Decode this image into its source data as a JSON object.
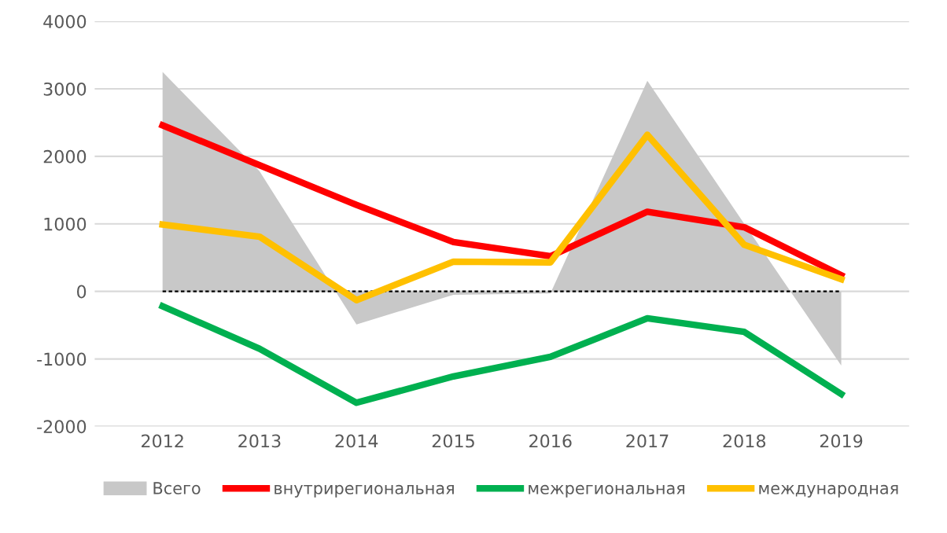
{
  "chart_data": {
    "type": "line",
    "categories": [
      "2012",
      "2013",
      "2014",
      "2015",
      "2016",
      "2017",
      "2018",
      "2019"
    ],
    "series": [
      {
        "name": "Всего",
        "type": "area",
        "color": "#c8c8c8",
        "values": [
          3250,
          1780,
          -490,
          -50,
          -30,
          3120,
          1000,
          -1100
        ]
      },
      {
        "name": "внутрирегиональная",
        "color": "#ff0000",
        "values": [
          2460,
          1870,
          1280,
          730,
          520,
          1180,
          950,
          240
        ]
      },
      {
        "name": "межрегиональная",
        "color": "#00b050",
        "values": [
          -220,
          -850,
          -1650,
          -1260,
          -970,
          -400,
          -600,
          -1520
        ]
      },
      {
        "name": "международная",
        "color": "#ffc000",
        "values": [
          990,
          810,
          -130,
          440,
          430,
          2320,
          690,
          180
        ]
      }
    ],
    "ylim": [
      -2000,
      4000
    ],
    "yticks": [
      -2000,
      -1000,
      0,
      1000,
      2000,
      3000,
      4000
    ],
    "ref_lines": [
      {
        "axis": "y",
        "value": 0,
        "color": "#000000",
        "line_style": "dashed"
      }
    ],
    "grid": "y",
    "legend": "bottom"
  }
}
